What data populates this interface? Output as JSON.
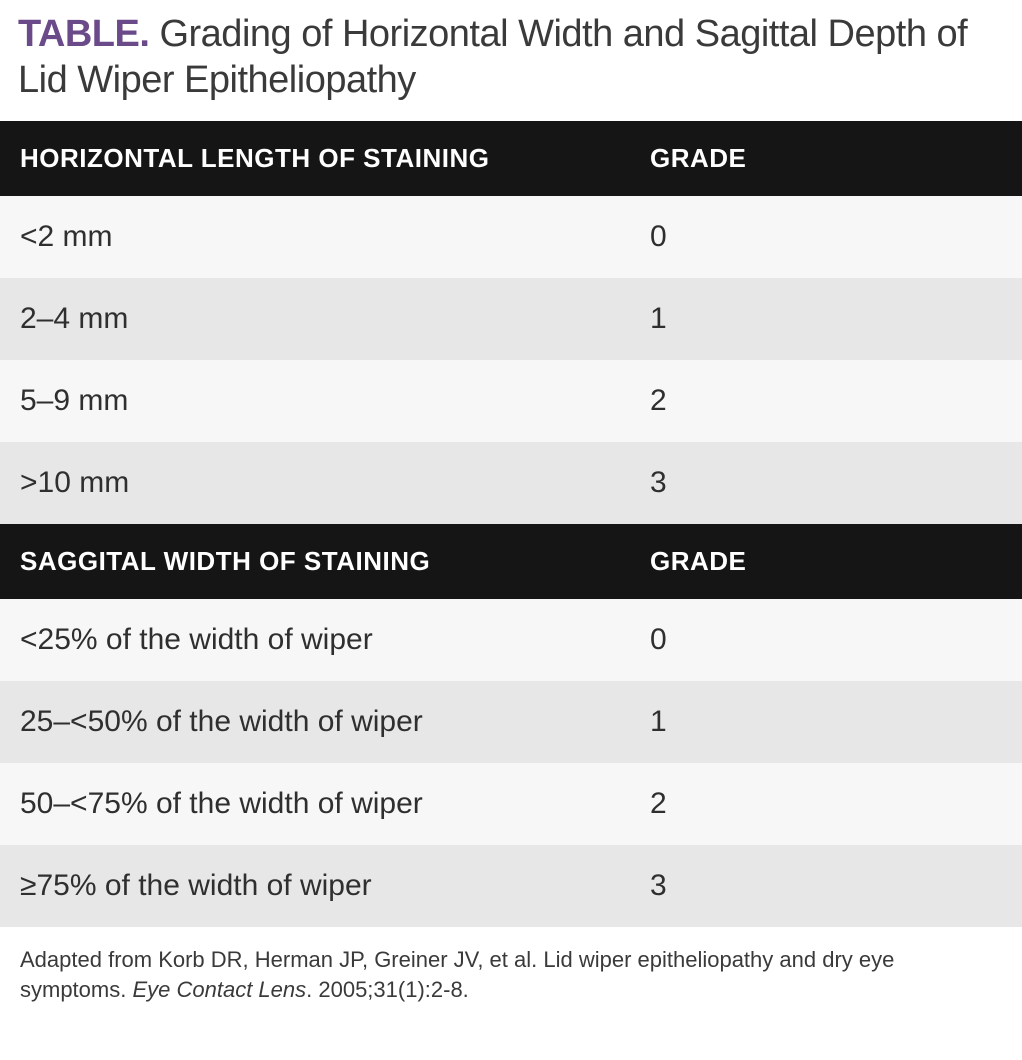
{
  "caption": {
    "label": "TABLE.",
    "text": " Grading of Horizontal Width and Sagittal Depth of Lid Wiper Epitheliopathy"
  },
  "colors": {
    "brand": "#6b4a8a",
    "header_bg": "#151515",
    "header_fg": "#ffffff",
    "row_light": "#f7f7f7",
    "row_shade": "#e7e7e7",
    "text": "#2f2f2f"
  },
  "sections": [
    {
      "header": {
        "left": "HORIZONTAL LENGTH OF STAINING",
        "right": "GRADE"
      },
      "rows": [
        {
          "left": "<2 mm",
          "right": "0"
        },
        {
          "left": "2–4 mm",
          "right": "1"
        },
        {
          "left": "5–9 mm",
          "right": "2"
        },
        {
          "left": ">10 mm",
          "right": "3"
        }
      ]
    },
    {
      "header": {
        "left": "SAGGITAL WIDTH OF STAINING",
        "right": "GRADE"
      },
      "rows": [
        {
          "left": "<25% of the width of wiper",
          "right": "0"
        },
        {
          "left": "25–<50% of the width of wiper",
          "right": "1"
        },
        {
          "left": "50–<75% of the width of wiper",
          "right": "2"
        },
        {
          "left": "≥75% of the width of wiper",
          "right": "3"
        }
      ]
    }
  ],
  "footnote": {
    "pre": "Adapted from Korb DR, Herman JP, Greiner JV, et al. Lid wiper epitheliopathy and dry eye symptoms. ",
    "ital": "Eye Contact Lens",
    "post": ". 2005;31(1):2-8."
  }
}
